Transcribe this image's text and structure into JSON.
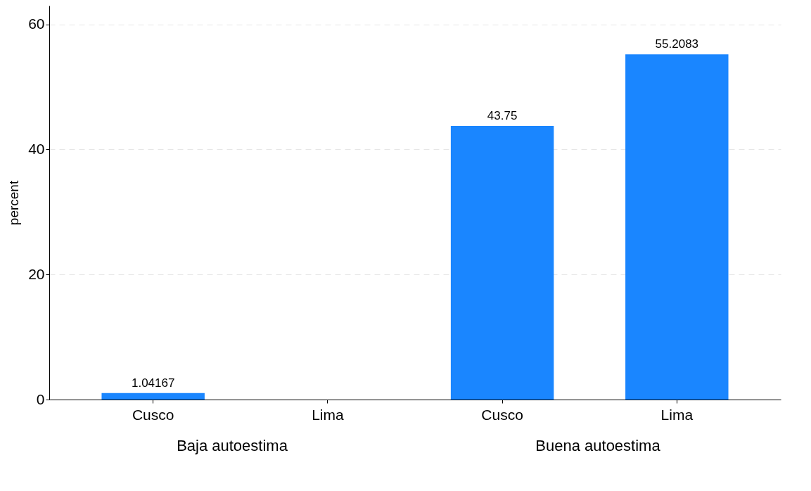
{
  "chart_data": {
    "type": "bar",
    "categories": [
      "Cusco",
      "Lima",
      "Cusco",
      "Lima"
    ],
    "values": [
      1.04167,
      null,
      43.75,
      55.2083
    ],
    "color": "#1a86ff",
    "ylabel": "percent",
    "ylim": [
      0,
      63
    ],
    "yticks": [
      0,
      20,
      40,
      60
    ],
    "grid": "y",
    "data_labels": true,
    "annotations": [
      "Baja autoestima",
      "Buena autoestima"
    ]
  }
}
